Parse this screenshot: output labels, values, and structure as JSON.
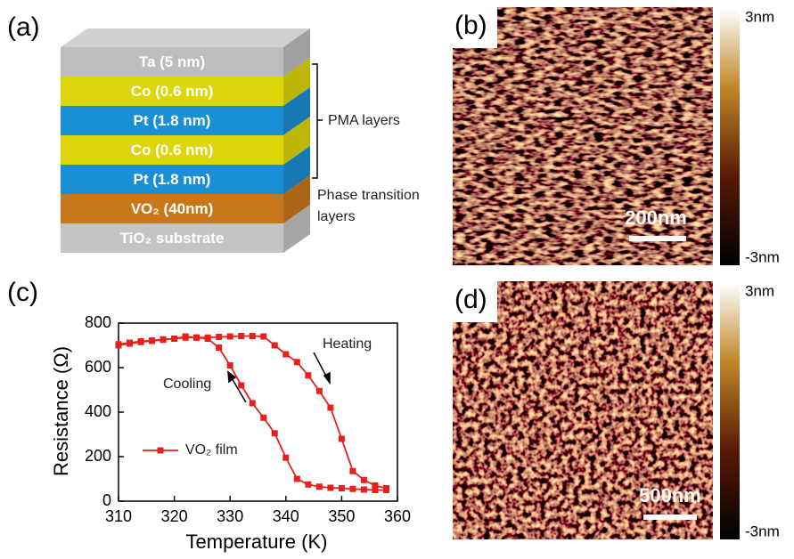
{
  "panels": {
    "a": "(a)",
    "b": "(b)",
    "c": "(c)",
    "d": "(d)"
  },
  "stack": {
    "layers": [
      {
        "label": "Ta (5 nm)",
        "color": "#bdbdbd"
      },
      {
        "label": "Co (0.6 nm)",
        "color": "#ddd60a"
      },
      {
        "label": "Pt (1.8 nm)",
        "color": "#1b8fd4"
      },
      {
        "label": "Co (0.6 nm)",
        "color": "#ddd60a"
      },
      {
        "label": "Pt (1.8 nm)",
        "color": "#1b8fd4"
      },
      {
        "label": "VO₂ (40nm)",
        "color": "#c9771b"
      },
      {
        "label": "TiO₂ substrate",
        "color": "#c4c4c4"
      }
    ],
    "pma_label": "PMA layers",
    "phase_label": [
      "Phase transition",
      "layers"
    ]
  },
  "afm": [
    {
      "scale_bar": "200nm",
      "cbar_max": "3nm",
      "cbar_min": "-3nm"
    },
    {
      "scale_bar": "500nm",
      "cbar_max": "3nm",
      "cbar_min": "-3nm"
    }
  ],
  "chart_data": {
    "type": "line",
    "x_label": "Temperature (K)",
    "y_label": "Resistance (Ω)",
    "xlim": [
      310,
      360
    ],
    "xticks": [
      310,
      320,
      330,
      340,
      350,
      360
    ],
    "ylim": [
      0,
      800
    ],
    "yticks": [
      0,
      200,
      400,
      600,
      800
    ],
    "x": [
      310,
      312,
      314,
      316,
      318,
      320,
      322,
      324,
      326,
      328,
      330,
      332,
      334,
      336,
      338,
      340,
      342,
      344,
      346,
      348,
      350,
      352,
      354,
      356,
      358
    ],
    "series": [
      {
        "name": "VO₂ film",
        "color": "#e8201c",
        "values": [
          705,
          712,
          718,
          722,
          727,
          730,
          735,
          735,
          735,
          738,
          740,
          742,
          742,
          740,
          700,
          660,
          625,
          565,
          495,
          420,
          280,
          135,
          95,
          70,
          58
        ]
      },
      {
        "color": "#e8201c",
        "values": [
          700,
          708,
          715,
          720,
          725,
          730,
          740,
          735,
          730,
          690,
          610,
          520,
          440,
          375,
          305,
          195,
          100,
          75,
          65,
          60,
          58,
          55,
          52,
          50,
          50
        ]
      }
    ],
    "annotations": [
      "Heating",
      "Cooling"
    ]
  }
}
